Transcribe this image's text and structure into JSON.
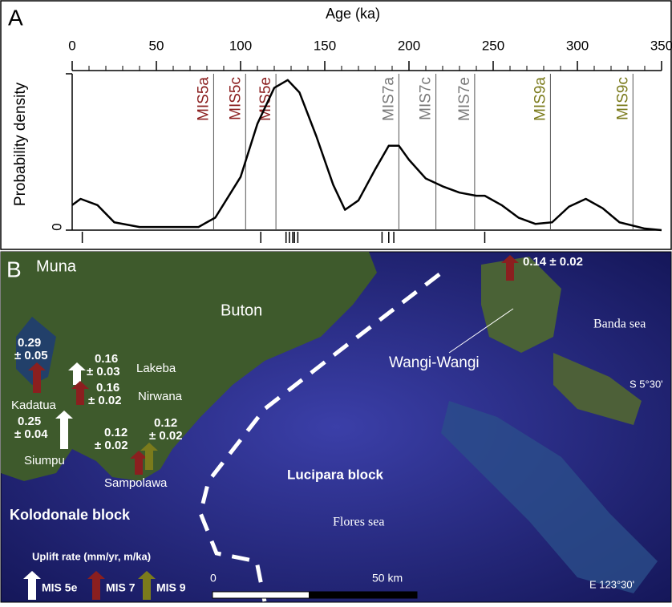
{
  "chart_data": {
    "type": "line",
    "panel_label": "A",
    "x_label": "Age (ka)",
    "y_label": "Probability density",
    "xlim": [
      0,
      350
    ],
    "xticks": [
      0,
      50,
      100,
      150,
      200,
      250,
      300,
      350
    ],
    "minor_step": 10,
    "ylim": [
      0,
      1
    ],
    "yticks": [
      0
    ],
    "x": [
      0,
      5,
      15,
      25,
      40,
      60,
      75,
      85,
      100,
      110,
      120,
      128,
      135,
      145,
      155,
      162,
      170,
      180,
      188,
      194,
      200,
      210,
      220,
      230,
      240,
      245,
      255,
      265,
      275,
      285,
      295,
      305,
      315,
      325,
      340,
      350
    ],
    "series": [
      {
        "color": "#000000",
        "values": [
          0.16,
          0.2,
          0.16,
          0.05,
          0.02,
          0.02,
          0.02,
          0.08,
          0.34,
          0.68,
          0.91,
          0.96,
          0.88,
          0.6,
          0.29,
          0.13,
          0.19,
          0.39,
          0.54,
          0.54,
          0.45,
          0.33,
          0.28,
          0.24,
          0.22,
          0.22,
          0.16,
          0.08,
          0.04,
          0.05,
          0.15,
          0.2,
          0.14,
          0.05,
          0.01,
          0
        ]
      }
    ],
    "samples": [
      6,
      112,
      127,
      129,
      131,
      132,
      134,
      184,
      188,
      191,
      245
    ],
    "markers": [
      {
        "label": "MIS5a",
        "x": 84,
        "color": "#8b1f1f"
      },
      {
        "label": "MIS5c",
        "x": 103,
        "color": "#8b1f1f"
      },
      {
        "label": "MIS5e",
        "x": 121,
        "color": "#8b1f1f"
      },
      {
        "label": "MIS7a",
        "x": 194,
        "color": "#7a7a7a"
      },
      {
        "label": "MIS7c",
        "x": 216,
        "color": "#7a7a7a"
      },
      {
        "label": "MIS7e",
        "x": 239,
        "color": "#7a7a7a"
      },
      {
        "label": "MIS9a",
        "x": 284,
        "color": "#7b7b1c"
      },
      {
        "label": "MIS9c",
        "x": 333,
        "color": "#7b7b1c"
      }
    ]
  },
  "map": {
    "panel_label": "B",
    "places": [
      "Muna",
      "Buton",
      "Lakeba",
      "Nirwana",
      "Kadatua",
      "Siumpu",
      "Sampolawa",
      "Wangi-Wangi"
    ],
    "blocks": [
      "Kolodonale block",
      "Lucipara block"
    ],
    "seas": [
      "Flores sea",
      "Banda sea"
    ],
    "coords": [
      "S 5°30'",
      "E 123°30'"
    ],
    "rates": [
      [
        "0.29",
        "± 0.05"
      ],
      [
        "0.16",
        "± 0.03"
      ],
      [
        "0.16",
        "± 0.02"
      ],
      [
        "0.25",
        "± 0.04"
      ],
      [
        "0.12",
        "± 0.02"
      ],
      [
        "0.12",
        "± 0.02"
      ],
      [
        "0.14 ± 0.02"
      ]
    ],
    "legend": {
      "title": "Uplift rate (mm/yr, m/ka)",
      "items": [
        "MIS 5e",
        "MIS 7",
        "MIS 9"
      ]
    },
    "scale": [
      "0",
      "50 km"
    ]
  }
}
